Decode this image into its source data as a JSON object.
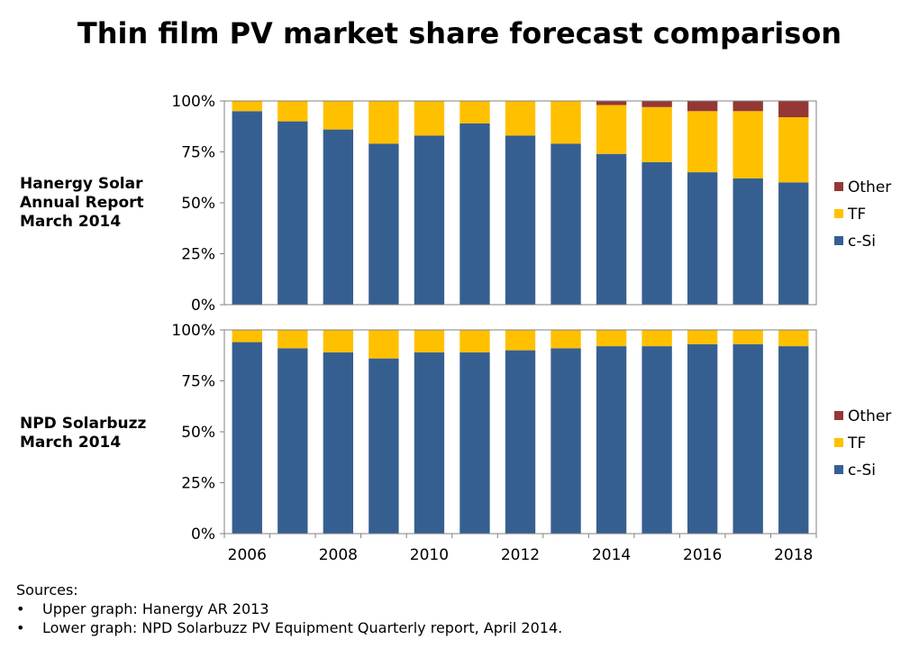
{
  "title": "Thin film PV market share forecast comparison",
  "colors": {
    "c-Si": "#365F91",
    "TF": "#FFC000",
    "Other": "#953735"
  },
  "chart_data": [
    {
      "type": "bar",
      "stacked": true,
      "label_lines": [
        "Hanergy Solar",
        "Annual Report",
        "March 2014"
      ],
      "categories": [
        "2006",
        "2007",
        "2008",
        "2009",
        "2010",
        "2011",
        "2012",
        "2013",
        "2014",
        "2015",
        "2016",
        "2017",
        "2018"
      ],
      "series": [
        {
          "name": "c-Si",
          "values": [
            95,
            90,
            86,
            79,
            83,
            89,
            83,
            79,
            74,
            70,
            65,
            62,
            60
          ]
        },
        {
          "name": "TF",
          "values": [
            5,
            10,
            14,
            21,
            17,
            11,
            17,
            21,
            24,
            27,
            30,
            33,
            32
          ]
        },
        {
          "name": "Other",
          "values": [
            0,
            0,
            0,
            0,
            0,
            0,
            0,
            0,
            2,
            3,
            5,
            5,
            8
          ]
        }
      ],
      "ylim": [
        0,
        100
      ],
      "yticks": [
        "0%",
        "25%",
        "50%",
        "75%",
        "100%"
      ],
      "legend": [
        "Other",
        "TF",
        "c-Si"
      ],
      "legend_position": "right"
    },
    {
      "type": "bar",
      "stacked": true,
      "label_lines": [
        "NPD Solarbuzz",
        "March 2014"
      ],
      "categories": [
        "2006",
        "2007",
        "2008",
        "2009",
        "2010",
        "2011",
        "2012",
        "2013",
        "2014",
        "2015",
        "2016",
        "2017",
        "2018"
      ],
      "series": [
        {
          "name": "c-Si",
          "values": [
            94,
            91,
            89,
            86,
            89,
            89,
            90,
            91,
            92,
            92,
            93,
            93,
            92
          ]
        },
        {
          "name": "TF",
          "values": [
            6,
            9,
            11,
            14,
            11,
            11,
            10,
            9,
            8,
            8,
            7,
            7,
            8
          ]
        },
        {
          "name": "Other",
          "values": [
            0,
            0,
            0,
            0,
            0,
            0,
            0,
            0,
            0,
            0,
            0,
            0,
            0
          ]
        }
      ],
      "ylim": [
        0,
        100
      ],
      "yticks": [
        "0%",
        "25%",
        "50%",
        "75%",
        "100%"
      ],
      "xtick_labels": [
        "2006",
        "2008",
        "2010",
        "2012",
        "2014",
        "2016",
        "2018"
      ],
      "legend": [
        "Other",
        "TF",
        "c-Si"
      ],
      "legend_position": "right"
    }
  ],
  "sources": {
    "heading": "Sources:",
    "items": [
      "Upper graph: Hanergy AR 2013",
      "Lower graph: NPD Solarbuzz PV Equipment Quarterly report, April 2014."
    ]
  }
}
